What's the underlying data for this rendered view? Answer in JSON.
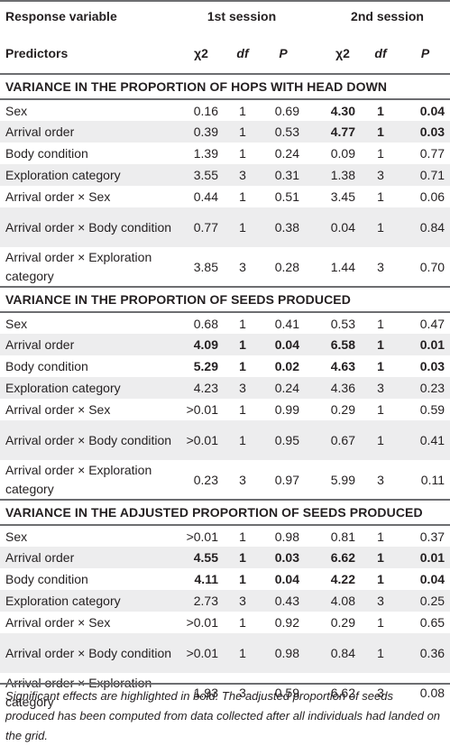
{
  "header": {
    "response_variable": "Response variable",
    "predictors": "Predictors",
    "session1": "1st session",
    "session2": "2nd session",
    "chi": "χ2",
    "df": "df",
    "p": "P"
  },
  "sections": [
    {
      "title": "VARIANCE IN THE PROPORTION OF HOPS WITH HEAD DOWN",
      "rows": [
        {
          "label": "Sex",
          "v": [
            "0.16",
            "1",
            "0.69",
            "4.30",
            "1",
            "0.04"
          ],
          "bold1": false,
          "bold2": true
        },
        {
          "label": "Arrival order",
          "v": [
            "0.39",
            "1",
            "0.53",
            "4.77",
            "1",
            "0.03"
          ],
          "bold1": false,
          "bold2": true
        },
        {
          "label": "Body condition",
          "v": [
            "1.39",
            "1",
            "0.24",
            "0.09",
            "1",
            "0.77"
          ],
          "bold1": false,
          "bold2": false
        },
        {
          "label": "Exploration category",
          "v": [
            "3.55",
            "3",
            "0.31",
            "1.38",
            "3",
            "0.71"
          ],
          "bold1": false,
          "bold2": false
        },
        {
          "label": "Arrival order × Sex",
          "v": [
            "0.44",
            "1",
            "0.51",
            "3.45",
            "1",
            "0.06"
          ],
          "bold1": false,
          "bold2": false
        },
        {
          "label": "Arrival order × Body condition",
          "v": [
            "0.77",
            "1",
            "0.38",
            "0.04",
            "1",
            "0.84"
          ],
          "bold1": false,
          "bold2": false
        },
        {
          "label": "Arrival order × Exploration category",
          "v": [
            "3.85",
            "3",
            "0.28",
            "1.44",
            "3",
            "0.70"
          ],
          "bold1": false,
          "bold2": false
        }
      ]
    },
    {
      "title": "VARIANCE IN THE PROPORTION OF SEEDS PRODUCED",
      "rows": [
        {
          "label": "Sex",
          "v": [
            "0.68",
            "1",
            "0.41",
            "0.53",
            "1",
            "0.47"
          ],
          "bold1": false,
          "bold2": false
        },
        {
          "label": "Arrival order",
          "v": [
            "4.09",
            "1",
            "0.04",
            "6.58",
            "1",
            "0.01"
          ],
          "bold1": true,
          "bold2": true
        },
        {
          "label": "Body condition",
          "v": [
            "5.29",
            "1",
            "0.02",
            "4.63",
            "1",
            "0.03"
          ],
          "bold1": true,
          "bold2": true
        },
        {
          "label": "Exploration category",
          "v": [
            "4.23",
            "3",
            "0.24",
            "4.36",
            "3",
            "0.23"
          ],
          "bold1": false,
          "bold2": false
        },
        {
          "label": "Arrival order × Sex",
          "v": [
            ">0.01",
            "1",
            "0.99",
            "0.29",
            "1",
            "0.59"
          ],
          "bold1": false,
          "bold2": false
        },
        {
          "label": "Arrival order × Body condition",
          "v": [
            ">0.01",
            "1",
            "0.95",
            "0.67",
            "1",
            "0.41"
          ],
          "bold1": false,
          "bold2": false
        },
        {
          "label": "Arrival order × Exploration category",
          "v": [
            "0.23",
            "3",
            "0.97",
            "5.99",
            "3",
            "0.11"
          ],
          "bold1": false,
          "bold2": false
        }
      ]
    },
    {
      "title": "VARIANCE IN THE ADJUSTED PROPORTION OF SEEDS PRODUCED",
      "rows": [
        {
          "label": "Sex",
          "v": [
            ">0.01",
            "1",
            "0.98",
            "0.81",
            "1",
            "0.37"
          ],
          "bold1": false,
          "bold2": false
        },
        {
          "label": "Arrival order",
          "v": [
            "4.55",
            "1",
            "0.03",
            "6.62",
            "1",
            "0.01"
          ],
          "bold1": true,
          "bold2": true
        },
        {
          "label": "Body condition",
          "v": [
            "4.11",
            "1",
            "0.04",
            "4.22",
            "1",
            "0.04"
          ],
          "bold1": true,
          "bold2": true
        },
        {
          "label": "Exploration category",
          "v": [
            "2.73",
            "3",
            "0.43",
            "4.08",
            "3",
            "0.25"
          ],
          "bold1": false,
          "bold2": false
        },
        {
          "label": "Arrival order × Sex",
          "v": [
            ">0.01",
            "1",
            "0.92",
            "0.29",
            "1",
            "0.65"
          ],
          "bold1": false,
          "bold2": false
        },
        {
          "label": "Arrival order × Body condition",
          "v": [
            ">0.01",
            "1",
            "0.98",
            "0.84",
            "1",
            "0.36"
          ],
          "bold1": false,
          "bold2": false
        },
        {
          "label": "Arrival order × Exploration category",
          "v": [
            "1.93",
            "3",
            "0.59",
            "6.62",
            "3",
            "0.08"
          ],
          "bold1": false,
          "bold2": false
        }
      ]
    }
  ],
  "footnote": "Significant effects are highlighted in bold. The adjusted proportion of seeds produced has been computed from data collected after all individuals had landed on the grid.",
  "colors": {
    "rule": "#6d6e71",
    "shade": "#ededee",
    "text": "#231f20"
  }
}
